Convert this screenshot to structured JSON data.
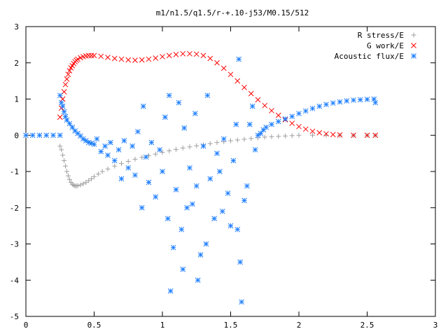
{
  "chart_data": {
    "type": "scatter",
    "title": "m1/n1.5/q1.5/r-+.10-j53/M0.15/512",
    "xlabel": "",
    "ylabel": "",
    "xlim": [
      0,
      3
    ],
    "ylim": [
      -5,
      3
    ],
    "x_ticks": [
      "0",
      "0.5",
      "1",
      "1.5",
      "2",
      "2.5",
      "3"
    ],
    "y_ticks": [
      "3",
      "2",
      "1",
      "0",
      "-1",
      "-2",
      "-3",
      "-4",
      "-5"
    ],
    "grid": false,
    "legend_position": "top-right",
    "series": [
      {
        "name": "R stress/E",
        "marker": "plus",
        "color": "#a0a0a0",
        "points": [
          [
            0.25,
            -0.3
          ],
          [
            0.26,
            -0.4
          ],
          [
            0.27,
            -0.55
          ],
          [
            0.28,
            -0.7
          ],
          [
            0.29,
            -0.85
          ],
          [
            0.3,
            -1.0
          ],
          [
            0.31,
            -1.12
          ],
          [
            0.32,
            -1.22
          ],
          [
            0.33,
            -1.3
          ],
          [
            0.34,
            -1.35
          ],
          [
            0.35,
            -1.38
          ],
          [
            0.36,
            -1.4
          ],
          [
            0.37,
            -1.4
          ],
          [
            0.38,
            -1.39
          ],
          [
            0.4,
            -1.37
          ],
          [
            0.42,
            -1.34
          ],
          [
            0.44,
            -1.3
          ],
          [
            0.46,
            -1.25
          ],
          [
            0.48,
            -1.2
          ],
          [
            0.5,
            -1.14
          ],
          [
            0.53,
            -1.07
          ],
          [
            0.56,
            -1.0
          ],
          [
            0.6,
            -0.93
          ],
          [
            0.65,
            -0.85
          ],
          [
            0.7,
            -0.78
          ],
          [
            0.75,
            -0.72
          ],
          [
            0.8,
            -0.66
          ],
          [
            0.85,
            -0.61
          ],
          [
            0.9,
            -0.56
          ],
          [
            0.95,
            -0.52
          ],
          [
            1.0,
            -0.47
          ],
          [
            1.05,
            -0.43
          ],
          [
            1.1,
            -0.39
          ],
          [
            1.15,
            -0.35
          ],
          [
            1.2,
            -0.32
          ],
          [
            1.25,
            -0.29
          ],
          [
            1.3,
            -0.26
          ],
          [
            1.35,
            -0.23
          ],
          [
            1.4,
            -0.2
          ],
          [
            1.45,
            -0.18
          ],
          [
            1.5,
            -0.15
          ],
          [
            1.55,
            -0.13
          ],
          [
            1.6,
            -0.11
          ],
          [
            1.65,
            -0.09
          ],
          [
            1.7,
            -0.07
          ],
          [
            1.75,
            -0.05
          ],
          [
            1.8,
            -0.04
          ],
          [
            1.85,
            -0.03
          ],
          [
            1.9,
            -0.02
          ],
          [
            1.95,
            -0.01
          ],
          [
            2.0,
            0.0
          ],
          [
            2.1,
            0.0
          ],
          [
            2.2,
            0.0
          ],
          [
            2.3,
            0.0
          ],
          [
            2.4,
            0.0
          ],
          [
            2.5,
            0.0
          ],
          [
            2.56,
            0.0
          ]
        ]
      },
      {
        "name": "G work/E",
        "marker": "cross",
        "color": "#ff0000",
        "points": [
          [
            0.25,
            0.5
          ],
          [
            0.26,
            0.75
          ],
          [
            0.27,
            1.0
          ],
          [
            0.28,
            1.2
          ],
          [
            0.29,
            1.4
          ],
          [
            0.3,
            1.55
          ],
          [
            0.31,
            1.68
          ],
          [
            0.32,
            1.78
          ],
          [
            0.33,
            1.86
          ],
          [
            0.34,
            1.92
          ],
          [
            0.35,
            1.98
          ],
          [
            0.36,
            2.03
          ],
          [
            0.37,
            2.07
          ],
          [
            0.38,
            2.1
          ],
          [
            0.4,
            2.14
          ],
          [
            0.42,
            2.17
          ],
          [
            0.44,
            2.19
          ],
          [
            0.46,
            2.2
          ],
          [
            0.48,
            2.2
          ],
          [
            0.5,
            2.2
          ],
          [
            0.55,
            2.18
          ],
          [
            0.6,
            2.15
          ],
          [
            0.65,
            2.12
          ],
          [
            0.7,
            2.1
          ],
          [
            0.75,
            2.08
          ],
          [
            0.8,
            2.07
          ],
          [
            0.85,
            2.08
          ],
          [
            0.9,
            2.1
          ],
          [
            0.95,
            2.13
          ],
          [
            1.0,
            2.17
          ],
          [
            1.05,
            2.2
          ],
          [
            1.1,
            2.23
          ],
          [
            1.15,
            2.25
          ],
          [
            1.2,
            2.25
          ],
          [
            1.25,
            2.24
          ],
          [
            1.3,
            2.2
          ],
          [
            1.35,
            2.12
          ],
          [
            1.4,
            2.0
          ],
          [
            1.45,
            1.85
          ],
          [
            1.5,
            1.68
          ],
          [
            1.55,
            1.5
          ],
          [
            1.6,
            1.32
          ],
          [
            1.65,
            1.15
          ],
          [
            1.7,
            0.98
          ],
          [
            1.75,
            0.82
          ],
          [
            1.8,
            0.68
          ],
          [
            1.85,
            0.55
          ],
          [
            1.9,
            0.43
          ],
          [
            1.95,
            0.33
          ],
          [
            2.0,
            0.24
          ],
          [
            2.05,
            0.17
          ],
          [
            2.1,
            0.11
          ],
          [
            2.15,
            0.07
          ],
          [
            2.2,
            0.04
          ],
          [
            2.25,
            0.02
          ],
          [
            2.3,
            0.01
          ],
          [
            2.4,
            0.0
          ],
          [
            2.5,
            0.0
          ],
          [
            2.56,
            0.0
          ]
        ]
      },
      {
        "name": "Acoustic flux/E",
        "marker": "star",
        "color": "#1f7fff",
        "points": [
          [
            0.0,
            0.0
          ],
          [
            0.05,
            0.0
          ],
          [
            0.1,
            0.0
          ],
          [
            0.15,
            0.0
          ],
          [
            0.2,
            0.0
          ],
          [
            0.25,
            0.0
          ],
          [
            0.25,
            1.1
          ],
          [
            0.26,
            0.9
          ],
          [
            0.27,
            0.8
          ],
          [
            0.28,
            0.65
          ],
          [
            0.29,
            0.52
          ],
          [
            0.3,
            0.42
          ],
          [
            0.32,
            0.32
          ],
          [
            0.34,
            0.22
          ],
          [
            0.36,
            0.12
          ],
          [
            0.38,
            0.05
          ],
          [
            0.4,
            -0.02
          ],
          [
            0.42,
            -0.1
          ],
          [
            0.44,
            -0.15
          ],
          [
            0.46,
            -0.2
          ],
          [
            0.48,
            -0.22
          ],
          [
            0.5,
            -0.25
          ],
          [
            0.52,
            -0.1
          ],
          [
            0.55,
            -0.45
          ],
          [
            0.58,
            -0.3
          ],
          [
            0.6,
            -0.55
          ],
          [
            0.62,
            -0.2
          ],
          [
            0.65,
            -0.7
          ],
          [
            0.68,
            -0.4
          ],
          [
            0.7,
            -1.2
          ],
          [
            0.72,
            -0.15
          ],
          [
            0.75,
            -0.9
          ],
          [
            0.78,
            -0.3
          ],
          [
            0.8,
            -1.1
          ],
          [
            0.82,
            0.1
          ],
          [
            0.85,
            -2.0
          ],
          [
            0.86,
            0.8
          ],
          [
            0.88,
            -0.6
          ],
          [
            0.9,
            -1.3
          ],
          [
            0.92,
            -0.2
          ],
          [
            0.95,
            -1.7
          ],
          [
            0.98,
            -0.4
          ],
          [
            1.0,
            -1.0
          ],
          [
            1.02,
            0.5
          ],
          [
            1.04,
            -2.3
          ],
          [
            1.05,
            1.1
          ],
          [
            1.06,
            -4.3
          ],
          [
            1.08,
            -3.1
          ],
          [
            1.1,
            -1.5
          ],
          [
            1.12,
            0.9
          ],
          [
            1.14,
            -2.6
          ],
          [
            1.15,
            -3.7
          ],
          [
            1.16,
            0.2
          ],
          [
            1.18,
            -2.0
          ],
          [
            1.2,
            -0.9
          ],
          [
            1.22,
            -1.9
          ],
          [
            1.24,
            0.6
          ],
          [
            1.25,
            -1.4
          ],
          [
            1.26,
            -4.0
          ],
          [
            1.28,
            -3.3
          ],
          [
            1.3,
            -0.3
          ],
          [
            1.32,
            -3.0
          ],
          [
            1.33,
            1.1
          ],
          [
            1.35,
            -1.2
          ],
          [
            1.38,
            -2.3
          ],
          [
            1.4,
            -0.5
          ],
          [
            1.42,
            -1.0
          ],
          [
            1.44,
            -2.1
          ],
          [
            1.45,
            -0.1
          ],
          [
            1.48,
            -1.6
          ],
          [
            1.5,
            -2.5
          ],
          [
            1.52,
            -0.7
          ],
          [
            1.54,
            0.3
          ],
          [
            1.55,
            -2.6
          ],
          [
            1.56,
            2.1
          ],
          [
            1.57,
            -3.5
          ],
          [
            1.58,
            -4.6
          ],
          [
            1.6,
            -1.8
          ],
          [
            1.62,
            -1.4
          ],
          [
            1.64,
            0.3
          ],
          [
            1.66,
            0.8
          ],
          [
            1.68,
            -0.4
          ],
          [
            1.7,
            0.0
          ],
          [
            1.72,
            0.05
          ],
          [
            1.74,
            0.15
          ],
          [
            1.76,
            0.22
          ],
          [
            1.8,
            0.3
          ],
          [
            1.85,
            0.38
          ],
          [
            1.9,
            0.45
          ],
          [
            1.95,
            0.52
          ],
          [
            2.0,
            0.6
          ],
          [
            2.05,
            0.67
          ],
          [
            2.1,
            0.74
          ],
          [
            2.15,
            0.8
          ],
          [
            2.2,
            0.85
          ],
          [
            2.25,
            0.89
          ],
          [
            2.3,
            0.92
          ],
          [
            2.35,
            0.95
          ],
          [
            2.4,
            0.97
          ],
          [
            2.45,
            0.98
          ],
          [
            2.5,
            0.99
          ],
          [
            2.55,
            1.0
          ],
          [
            2.56,
            0.9
          ]
        ]
      }
    ]
  }
}
